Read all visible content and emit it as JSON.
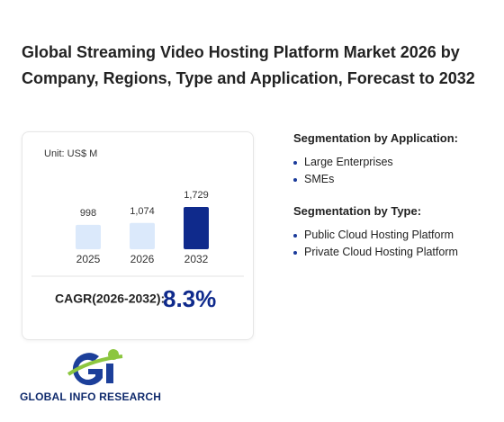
{
  "title": "Global Streaming Video Hosting Platform Market 2026 by Company, Regions, Type and Application, Forecast to 2032",
  "chart_data": {
    "type": "bar",
    "unit": "Unit: US$ M",
    "categories": [
      "2025",
      "2026",
      "2032"
    ],
    "values": [
      998,
      1074,
      1729
    ],
    "value_labels": [
      "998",
      "1,074",
      "1,729"
    ],
    "colors": [
      "#dbe9fb",
      "#dbe9fb",
      "#0f2a8c"
    ]
  },
  "cagr": {
    "label": "CAGR(2026-2032):",
    "value": "8.3%"
  },
  "segments": [
    {
      "heading": "Segmentation by Application:",
      "items": [
        "Large Enterprises",
        "SMEs"
      ]
    },
    {
      "heading": "Segmentation by Type:",
      "items": [
        "Public Cloud Hosting Platform",
        "Private Cloud Hosting Platform"
      ]
    }
  ],
  "logo": "GLOBAL INFO RESEARCH"
}
